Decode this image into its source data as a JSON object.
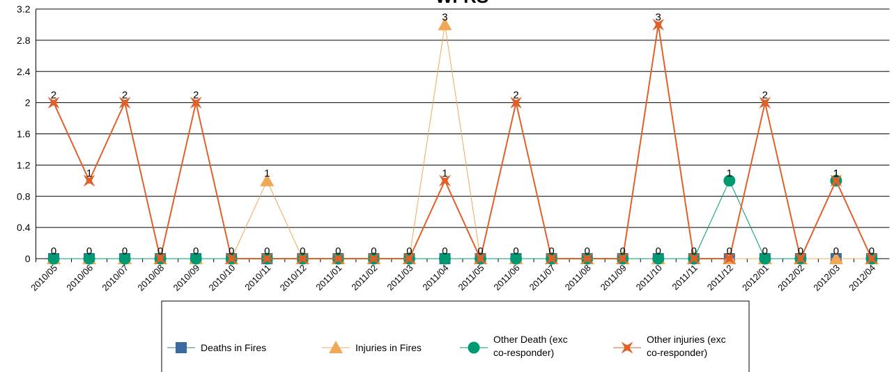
{
  "chart_data": {
    "type": "line",
    "title": "WFRS",
    "categories": [
      "2010/05",
      "2010/06",
      "2010/07",
      "2010/08",
      "2010/09",
      "2010/10",
      "2010/11",
      "2010/12",
      "2011/01",
      "2011/02",
      "2011/03",
      "2011/04",
      "2011/05",
      "2011/06",
      "2011/07",
      "2011/08",
      "2011/09",
      "2011/10",
      "2011/11",
      "2011/12",
      "2012/01",
      "2012/02",
      "2012/03",
      "2012/04"
    ],
    "series": [
      {
        "name": "Deaths in Fires",
        "color": "#3a6aa0",
        "line_color": "#2a8080",
        "marker": "square",
        "values": [
          0,
          0,
          0,
          0,
          0,
          0,
          0,
          0,
          0,
          0,
          0,
          0,
          0,
          0,
          0,
          0,
          0,
          0,
          0,
          0,
          0,
          0,
          0,
          0
        ]
      },
      {
        "name": "Injuries in Fires",
        "color": "#f0a858",
        "line_color": "#f0a858",
        "marker": "triangle",
        "values": [
          0,
          0,
          0,
          0,
          0,
          0,
          1,
          0,
          0,
          0,
          0,
          3,
          0,
          0,
          0,
          0,
          0,
          0,
          0,
          0,
          0,
          0,
          0,
          0
        ]
      },
      {
        "name": "Other Death (exc co-responder)",
        "color": "#009a72",
        "line_color": "#009a72",
        "marker": "circle",
        "values": [
          0,
          0,
          0,
          0,
          0,
          0,
          0,
          0,
          0,
          0,
          0,
          0,
          0,
          0,
          0,
          0,
          0,
          0,
          0,
          1,
          0,
          0,
          1,
          0
        ]
      },
      {
        "name": "Other injuries (exc co-responder)",
        "color": "#e0602a",
        "line_color": "#e0602a",
        "marker": "star",
        "values": [
          2,
          1,
          2,
          0,
          2,
          0,
          0,
          0,
          0,
          0,
          0,
          1,
          0,
          2,
          0,
          0,
          0,
          3,
          0,
          0,
          2,
          0,
          1,
          0
        ]
      }
    ],
    "ylim": [
      0,
      3.2
    ],
    "yticks": [
      0,
      0.4,
      0.8,
      1.2,
      1.6,
      2,
      2.4,
      2.8,
      3.2
    ],
    "grid": true,
    "legend": "bottom"
  }
}
